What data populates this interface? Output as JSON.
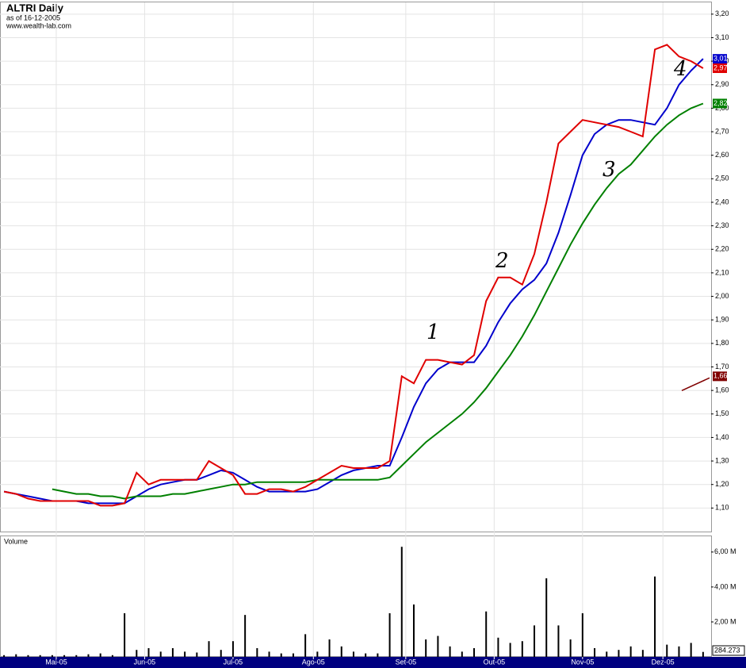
{
  "chart_data": {
    "type": "stock",
    "title": "ALTRI Daily",
    "subtitle": "as of 16-12-2005",
    "source": "www.wealth-lab.com",
    "x": [
      0,
      3,
      6,
      9,
      12,
      15,
      18,
      21,
      24,
      27,
      30,
      33,
      36,
      39,
      42,
      45,
      48,
      51,
      54,
      57,
      60,
      63,
      66,
      69,
      72,
      75,
      78,
      81,
      84,
      87,
      90,
      93,
      96,
      99,
      102,
      105,
      108,
      111,
      114,
      117,
      120,
      123,
      126,
      129,
      132,
      135,
      138,
      141,
      144,
      147,
      150,
      153,
      156,
      159,
      162,
      165,
      168,
      171,
      174
    ],
    "xlim": [
      -1,
      176
    ],
    "xticks": [
      {
        "value": 13,
        "label": "Mai-05"
      },
      {
        "value": 35,
        "label": "Jun-05"
      },
      {
        "value": 57,
        "label": "Jul-05"
      },
      {
        "value": 77,
        "label": "Ago-05"
      },
      {
        "value": 100,
        "label": "Set-05"
      },
      {
        "value": 122,
        "label": "Out-05"
      },
      {
        "value": 144,
        "label": "Nov-05"
      },
      {
        "value": 164,
        "label": "Dez-05"
      }
    ],
    "ylim": [
      1.0,
      3.25
    ],
    "yticks": [
      {
        "value": 1.1,
        "label": "1,10"
      },
      {
        "value": 1.2,
        "label": "1,20"
      },
      {
        "value": 1.3,
        "label": "1,30"
      },
      {
        "value": 1.4,
        "label": "1,40"
      },
      {
        "value": 1.5,
        "label": "1,50"
      },
      {
        "value": 1.6,
        "label": "1,60"
      },
      {
        "value": 1.7,
        "label": "1,70"
      },
      {
        "value": 1.8,
        "label": "1,80"
      },
      {
        "value": 1.9,
        "label": "1,90"
      },
      {
        "value": 2.0,
        "label": "2,00"
      },
      {
        "value": 2.1,
        "label": "2,10"
      },
      {
        "value": 2.2,
        "label": "2,20"
      },
      {
        "value": 2.3,
        "label": "2,30"
      },
      {
        "value": 2.4,
        "label": "2,40"
      },
      {
        "value": 2.5,
        "label": "2,50"
      },
      {
        "value": 2.6,
        "label": "2,60"
      },
      {
        "value": 2.7,
        "label": "2,70"
      },
      {
        "value": 2.8,
        "label": "2,80"
      },
      {
        "value": 2.9,
        "label": "2,90"
      },
      {
        "value": 3.0,
        "label": "3,00"
      },
      {
        "value": 3.1,
        "label": "3,10"
      },
      {
        "value": 3.2,
        "label": "3,20"
      }
    ],
    "grid": true,
    "series": [
      {
        "color": "#0000cc",
        "last_label": "3,01",
        "values": [
          1.17,
          1.16,
          1.15,
          1.14,
          1.13,
          1.13,
          1.13,
          1.12,
          1.12,
          1.12,
          1.12,
          1.15,
          1.18,
          1.2,
          1.21,
          1.22,
          1.22,
          1.24,
          1.26,
          1.25,
          1.22,
          1.19,
          1.17,
          1.17,
          1.17,
          1.17,
          1.18,
          1.21,
          1.24,
          1.26,
          1.27,
          1.28,
          1.28,
          1.4,
          1.53,
          1.63,
          1.69,
          1.72,
          1.72,
          1.72,
          1.79,
          1.89,
          1.97,
          2.03,
          2.07,
          2.14,
          2.27,
          2.43,
          2.6,
          2.69,
          2.73,
          2.75,
          2.75,
          2.74,
          2.73,
          2.8,
          2.9,
          2.96,
          3.01
        ]
      },
      {
        "color": "#008000",
        "last_label": "2,82",
        "values": [
          null,
          null,
          null,
          null,
          1.18,
          1.17,
          1.16,
          1.16,
          1.15,
          1.15,
          1.14,
          1.15,
          1.15,
          1.15,
          1.16,
          1.16,
          1.17,
          1.18,
          1.19,
          1.2,
          1.2,
          1.21,
          1.21,
          1.21,
          1.21,
          1.21,
          1.22,
          1.22,
          1.22,
          1.22,
          1.22,
          1.22,
          1.23,
          1.28,
          1.33,
          1.38,
          1.42,
          1.46,
          1.5,
          1.55,
          1.61,
          1.68,
          1.75,
          1.83,
          1.92,
          2.02,
          2.12,
          2.22,
          2.31,
          2.39,
          2.46,
          2.52,
          2.56,
          2.62,
          2.68,
          2.73,
          2.77,
          2.8,
          2.82
        ]
      },
      {
        "color": "#e00000",
        "last_label": "2,97",
        "values": [
          1.17,
          1.16,
          1.14,
          1.13,
          1.13,
          1.13,
          1.13,
          1.13,
          1.11,
          1.11,
          1.12,
          1.25,
          1.2,
          1.22,
          1.22,
          1.22,
          1.22,
          1.3,
          1.27,
          1.24,
          1.16,
          1.16,
          1.18,
          1.18,
          1.17,
          1.19,
          1.22,
          1.25,
          1.28,
          1.27,
          1.27,
          1.27,
          1.3,
          1.66,
          1.63,
          1.73,
          1.73,
          1.72,
          1.71,
          1.75,
          1.98,
          2.08,
          2.08,
          2.05,
          2.18,
          2.4,
          2.65,
          2.7,
          2.75,
          2.74,
          2.73,
          2.72,
          2.7,
          2.68,
          3.05,
          3.07,
          3.02,
          3.0,
          2.97
        ]
      }
    ],
    "markers": [
      {
        "value": 1.66,
        "label": "1,66",
        "color": "#800000"
      }
    ],
    "annotations": [
      "1",
      "2",
      "3",
      "4"
    ],
    "volume": {
      "title": "Volume",
      "color": "#000000",
      "ylim": [
        0,
        6900000
      ],
      "yticks": [
        {
          "value": 2000000,
          "label": "2,00 M"
        },
        {
          "value": 4000000,
          "label": "4,00 M"
        },
        {
          "value": 6000000,
          "label": "6,00 M"
        }
      ],
      "last_label": "284.273",
      "values": [
        100000,
        150000,
        100000,
        100000,
        100000,
        100000,
        100000,
        150000,
        200000,
        100000,
        2500000,
        400000,
        500000,
        300000,
        500000,
        300000,
        250000,
        900000,
        400000,
        900000,
        2400000,
        500000,
        300000,
        200000,
        200000,
        1300000,
        300000,
        1000000,
        600000,
        300000,
        200000,
        200000,
        2500000,
        6300000,
        3000000,
        1000000,
        1200000,
        600000,
        300000,
        500000,
        2600000,
        1100000,
        800000,
        900000,
        1800000,
        4500000,
        1800000,
        1000000,
        2500000,
        500000,
        300000,
        400000,
        600000,
        400000,
        4600000,
        700000,
        600000,
        800000,
        284273
      ]
    }
  }
}
